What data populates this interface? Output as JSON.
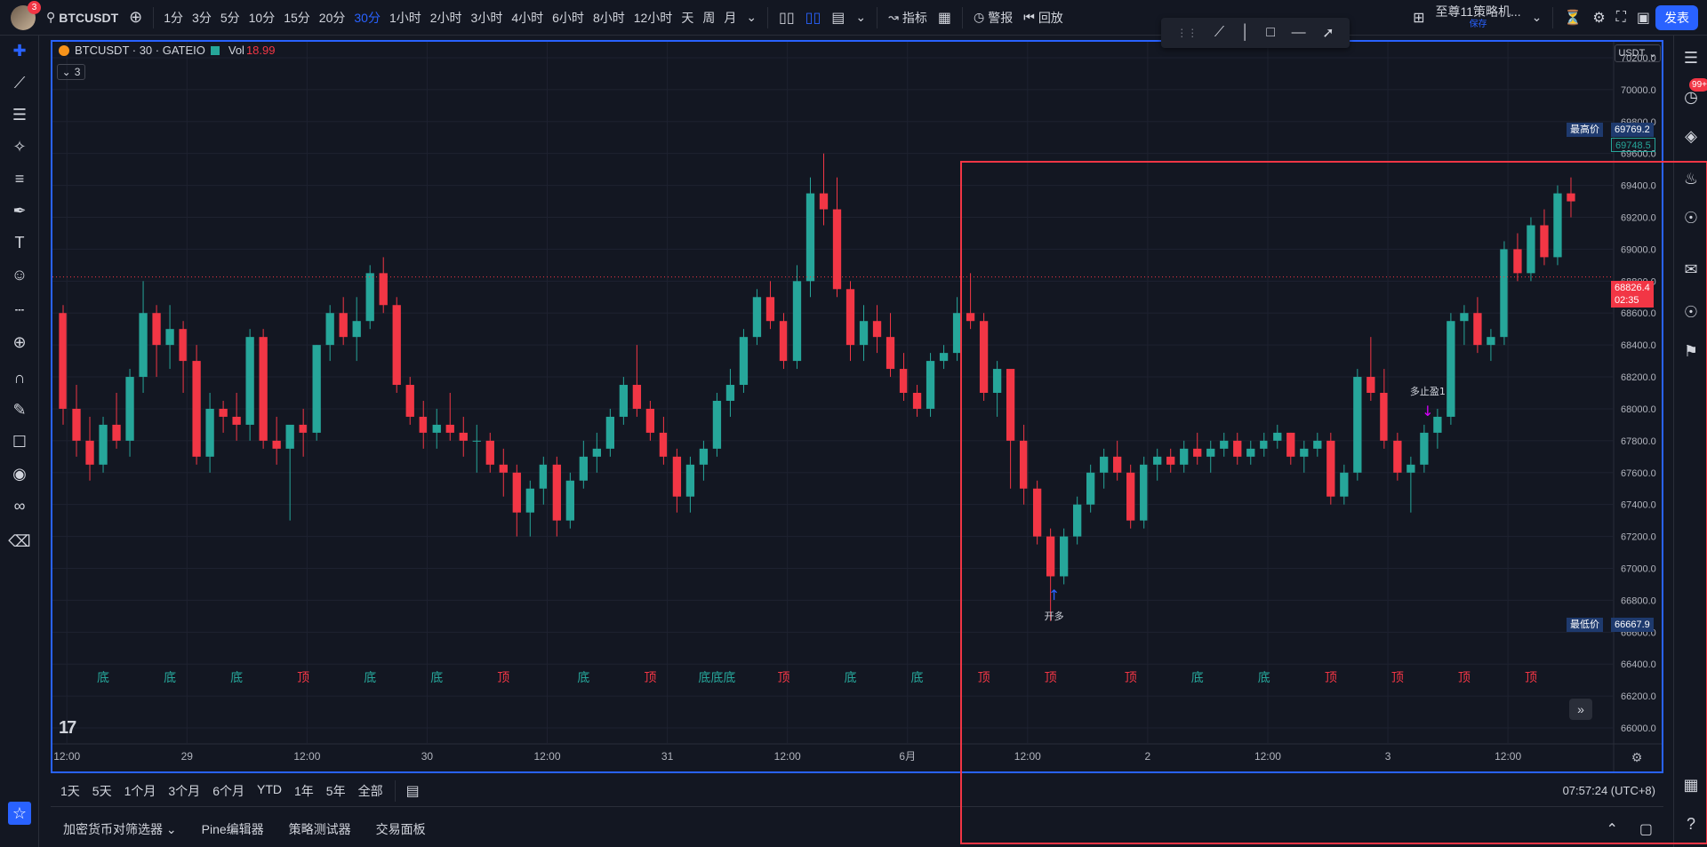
{
  "topbar": {
    "avatar_badge": "3",
    "symbol": "BTCUSDT",
    "timeframes": [
      "1分",
      "3分",
      "5分",
      "10分",
      "15分",
      "20分",
      "30分",
      "1小时",
      "2小时",
      "3小时",
      "4小时",
      "6小时",
      "8小时",
      "12小时",
      "天",
      "周",
      "月"
    ],
    "active_timeframe": "30分",
    "indicators_label": "指标",
    "alert_label": "警报",
    "replay_label": "回放",
    "layout_name": "至尊11策略机...",
    "layout_status": "保存",
    "publish_label": "发表"
  },
  "legend": {
    "title": "BTCUSDT · 30 · GATEIO",
    "vol_label": "Vol",
    "vol_value": "18.99",
    "collapsed_count": "3"
  },
  "price_axis": {
    "currency": "USDT",
    "ticks": [
      "70200.0",
      "70000.0",
      "69800.0",
      "69600.0",
      "69400.0",
      "69200.0",
      "69000.0",
      "68800.0",
      "68600.0",
      "68400.0",
      "68200.0",
      "68000.0",
      "67800.0",
      "67600.0",
      "67400.0",
      "67200.0",
      "67000.0",
      "66800.0",
      "66600.0",
      "66400.0",
      "66200.0",
      "66000.0"
    ],
    "high_label": "最高价",
    "high_value": "69769.2",
    "high_sub_value": "69748.5",
    "low_label": "最低价",
    "low_value": "66667.9",
    "last_price": "68826.4",
    "countdown": "02:35"
  },
  "time_axis": {
    "labels": [
      "12:00",
      "29",
      "12:00",
      "30",
      "12:00",
      "31",
      "12:00",
      "6月",
      "12:00",
      "2",
      "12:00",
      "3",
      "12:00"
    ]
  },
  "chart_data": {
    "type": "candlestick",
    "ylim": [
      65900,
      70300
    ],
    "y_unit": "USDT",
    "bar_interval": "30m",
    "candles_ohlc": [
      [
        68600,
        68650,
        67900,
        68000
      ],
      [
        68000,
        68150,
        67700,
        67800
      ],
      [
        67800,
        67950,
        67550,
        67650
      ],
      [
        67650,
        67950,
        67600,
        67900
      ],
      [
        67900,
        68100,
        67750,
        67800
      ],
      [
        67800,
        68250,
        67700,
        68200
      ],
      [
        68200,
        68800,
        68100,
        68600
      ],
      [
        68600,
        68650,
        68200,
        68400
      ],
      [
        68400,
        68650,
        68250,
        68500
      ],
      [
        68500,
        68550,
        68100,
        68300
      ],
      [
        68300,
        68400,
        67650,
        67700
      ],
      [
        67700,
        68100,
        67600,
        68000
      ],
      [
        68000,
        68050,
        67850,
        67950
      ],
      [
        67950,
        68100,
        67800,
        67900
      ],
      [
        67900,
        68500,
        67800,
        68450
      ],
      [
        68450,
        68500,
        67750,
        67800
      ],
      [
        67800,
        67950,
        67650,
        67750
      ],
      [
        67750,
        67850,
        67300,
        67900
      ],
      [
        67900,
        68000,
        67700,
        67850
      ],
      [
        67850,
        68400,
        67800,
        68400
      ],
      [
        68400,
        68650,
        68300,
        68600
      ],
      [
        68600,
        68700,
        68400,
        68450
      ],
      [
        68450,
        68700,
        68300,
        68550
      ],
      [
        68550,
        68900,
        68500,
        68850
      ],
      [
        68850,
        68950,
        68600,
        68650
      ],
      [
        68650,
        68700,
        68100,
        68150
      ],
      [
        68150,
        68200,
        67900,
        67950
      ],
      [
        67950,
        68050,
        67750,
        67850
      ],
      [
        67850,
        68000,
        67750,
        67900
      ],
      [
        67900,
        68100,
        67800,
        67850
      ],
      [
        67850,
        67950,
        67700,
        67800
      ],
      [
        67800,
        67900,
        67600,
        67800
      ],
      [
        67800,
        67850,
        67600,
        67650
      ],
      [
        67650,
        67750,
        67450,
        67600
      ],
      [
        67600,
        67650,
        67200,
        67350
      ],
      [
        67350,
        67550,
        67200,
        67500
      ],
      [
        67500,
        67700,
        67400,
        67650
      ],
      [
        67650,
        67700,
        67200,
        67300
      ],
      [
        67300,
        67600,
        67250,
        67550
      ],
      [
        67550,
        67800,
        67500,
        67700
      ],
      [
        67700,
        67850,
        67600,
        67750
      ],
      [
        67750,
        68000,
        67700,
        67950
      ],
      [
        67950,
        68200,
        67900,
        68150
      ],
      [
        68150,
        68400,
        67950,
        68000
      ],
      [
        68000,
        68050,
        67800,
        67850
      ],
      [
        67850,
        67950,
        67650,
        67700
      ],
      [
        67700,
        67750,
        67350,
        67450
      ],
      [
        67450,
        67700,
        67350,
        67650
      ],
      [
        67650,
        67800,
        67550,
        67750
      ],
      [
        67750,
        68100,
        67700,
        68050
      ],
      [
        68050,
        68250,
        67950,
        68150
      ],
      [
        68150,
        68500,
        68100,
        68450
      ],
      [
        68450,
        68750,
        68400,
        68700
      ],
      [
        68700,
        68800,
        68500,
        68550
      ],
      [
        68550,
        68600,
        68250,
        68300
      ],
      [
        68300,
        68900,
        68250,
        68800
      ],
      [
        68800,
        69450,
        68700,
        69350
      ],
      [
        69350,
        69600,
        69150,
        69250
      ],
      [
        69250,
        69450,
        68700,
        68750
      ],
      [
        68750,
        68800,
        68300,
        68400
      ],
      [
        68400,
        68650,
        68300,
        68550
      ],
      [
        68550,
        68650,
        68350,
        68450
      ],
      [
        68450,
        68600,
        68200,
        68250
      ],
      [
        68250,
        68350,
        68050,
        68100
      ],
      [
        68100,
        68150,
        67950,
        68000
      ],
      [
        68000,
        68350,
        67950,
        68300
      ],
      [
        68300,
        68400,
        68250,
        68350
      ],
      [
        68350,
        68700,
        68300,
        68600
      ],
      [
        68600,
        68850,
        68500,
        68550
      ],
      [
        68550,
        68600,
        68050,
        68100
      ],
      [
        68100,
        68300,
        67950,
        68250
      ],
      [
        68250,
        68200,
        67500,
        67800
      ],
      [
        67800,
        67900,
        67400,
        67500
      ],
      [
        67500,
        67550,
        67150,
        67200
      ],
      [
        67200,
        67250,
        66670,
        66950
      ],
      [
        66950,
        67250,
        66900,
        67200
      ],
      [
        67200,
        67450,
        67150,
        67400
      ],
      [
        67400,
        67650,
        67350,
        67600
      ],
      [
        67600,
        67750,
        67500,
        67700
      ],
      [
        67700,
        67800,
        67550,
        67600
      ],
      [
        67600,
        67650,
        67250,
        67300
      ],
      [
        67300,
        67700,
        67250,
        67650
      ],
      [
        67650,
        67750,
        67550,
        67700
      ],
      [
        67700,
        67750,
        67600,
        67650
      ],
      [
        67650,
        67800,
        67600,
        67750
      ],
      [
        67750,
        67850,
        67650,
        67700
      ],
      [
        67700,
        67800,
        67600,
        67750
      ],
      [
        67750,
        67850,
        67700,
        67800
      ],
      [
        67800,
        67850,
        67650,
        67700
      ],
      [
        67700,
        67800,
        67650,
        67750
      ],
      [
        67750,
        67850,
        67700,
        67800
      ],
      [
        67800,
        67900,
        67750,
        67850
      ],
      [
        67850,
        67850,
        67650,
        67700
      ],
      [
        67700,
        67800,
        67600,
        67750
      ],
      [
        67750,
        67850,
        67700,
        67800
      ],
      [
        67800,
        67850,
        67400,
        67450
      ],
      [
        67450,
        67650,
        67400,
        67600
      ],
      [
        67600,
        68250,
        67550,
        68200
      ],
      [
        68200,
        68450,
        68050,
        68100
      ],
      [
        68100,
        68250,
        67750,
        67800
      ],
      [
        67800,
        67850,
        67550,
        67600
      ],
      [
        67600,
        67700,
        67350,
        67650
      ],
      [
        67650,
        67900,
        67600,
        67850
      ],
      [
        67850,
        68000,
        67750,
        67950
      ],
      [
        67950,
        68600,
        67900,
        68550
      ],
      [
        68550,
        68650,
        68400,
        68600
      ],
      [
        68600,
        68700,
        68350,
        68400
      ],
      [
        68400,
        68500,
        68300,
        68450
      ],
      [
        68450,
        69050,
        68400,
        69000
      ],
      [
        69000,
        69100,
        68800,
        68850
      ],
      [
        68850,
        69200,
        68800,
        69150
      ],
      [
        69150,
        69250,
        68900,
        68950
      ],
      [
        68950,
        69400,
        68900,
        69350
      ],
      [
        69350,
        69450,
        69200,
        69300
      ]
    ],
    "signal_labels": [
      "底",
      "底",
      "底",
      "顶",
      "底",
      "底",
      "顶",
      "底",
      "顶",
      "底底底",
      "顶",
      "底",
      "底",
      "顶",
      "顶",
      "顶",
      "底",
      "底",
      "顶",
      "顶",
      "顶",
      "顶"
    ],
    "trade_markers": [
      {
        "label": "开多"
      },
      {
        "label": "多止盈1"
      }
    ],
    "annotations": [
      "最高价 69769.2",
      "最低价 66667.9"
    ]
  },
  "rangebar": {
    "ranges": [
      "1天",
      "5天",
      "1个月",
      "3个月",
      "6个月",
      "YTD",
      "1年",
      "5年",
      "全部"
    ],
    "clock": "07:57:24 (UTC+8)"
  },
  "bottompanel": {
    "tabs": [
      "加密货币对筛选器",
      "Pine编辑器",
      "策略测试器",
      "交易面板"
    ]
  },
  "right_badge": "99+"
}
